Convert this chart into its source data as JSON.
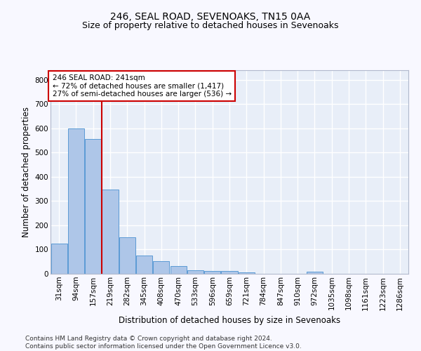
{
  "title": "246, SEAL ROAD, SEVENOAKS, TN15 0AA",
  "subtitle": "Size of property relative to detached houses in Sevenoaks",
  "xlabel": "Distribution of detached houses by size in Sevenoaks",
  "ylabel": "Number of detached properties",
  "categories": [
    "31sqm",
    "94sqm",
    "157sqm",
    "219sqm",
    "282sqm",
    "345sqm",
    "408sqm",
    "470sqm",
    "533sqm",
    "596sqm",
    "659sqm",
    "721sqm",
    "784sqm",
    "847sqm",
    "910sqm",
    "972sqm",
    "1035sqm",
    "1098sqm",
    "1161sqm",
    "1223sqm",
    "1286sqm"
  ],
  "values": [
    125,
    600,
    557,
    348,
    150,
    76,
    52,
    31,
    15,
    13,
    13,
    7,
    0,
    0,
    0,
    8,
    0,
    0,
    0,
    0,
    0
  ],
  "bar_color": "#aec6e8",
  "bar_edge_color": "#5b9bd5",
  "background_color": "#e8eef8",
  "grid_color": "#ffffff",
  "vline_color": "#cc0000",
  "annotation_text": "246 SEAL ROAD: 241sqm\n← 72% of detached houses are smaller (1,417)\n27% of semi-detached houses are larger (536) →",
  "annotation_box_color": "#ffffff",
  "annotation_box_edge": "#cc0000",
  "ylim": [
    0,
    840
  ],
  "yticks": [
    0,
    100,
    200,
    300,
    400,
    500,
    600,
    700,
    800
  ],
  "footer": "Contains HM Land Registry data © Crown copyright and database right 2024.\nContains public sector information licensed under the Open Government Licence v3.0.",
  "title_fontsize": 10,
  "subtitle_fontsize": 9,
  "axis_label_fontsize": 8.5,
  "tick_fontsize": 7.5,
  "footer_fontsize": 6.5
}
